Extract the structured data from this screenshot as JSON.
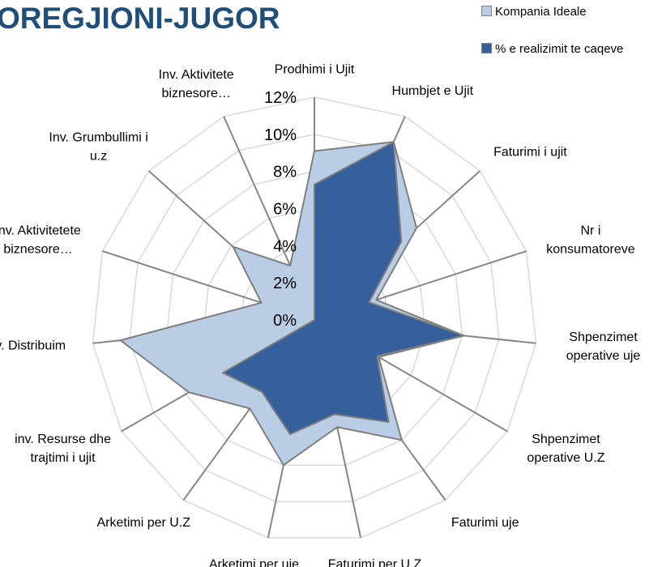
{
  "chart_data": {
    "type": "radar",
    "title": "OREGJIONI-JUGOR",
    "categories": [
      "Prodhimi i Ujit",
      "Humbjet e Ujit",
      "Faturimi i ujit",
      "Nr i konsumatoreve",
      "Shpenzimet operative uje",
      "Shpenzimet operative U.Z",
      "Faturimi uje",
      "Faturimi per U.Z",
      "Arketimi per uje",
      "Arketimi per U.Z",
      "inv. Resurse dhe trajtimi i ujit",
      "inv. Distribuim",
      "inv. Aktivitetete biznesore…",
      "Inv. Grumbullimi i u.z",
      "Inv. Aktivitete biznesore…"
    ],
    "series": [
      {
        "name": "Kompania Ideale",
        "color": "#b9cde5",
        "values": [
          9.1,
          10.5,
          7.4,
          3.5,
          8.1,
          4.0,
          8.0,
          5.9,
          8.0,
          5.9,
          7.8,
          10.5,
          3.0,
          5.9,
          3.2
        ]
      },
      {
        "name": "% e realizimit te caqeve",
        "color": "#35609c",
        "values": [
          7.3,
          10.5,
          6.3,
          3.1,
          8.1,
          3.9,
          6.8,
          5.2,
          6.3,
          4.8,
          5.7,
          0,
          0,
          0,
          0
        ]
      }
    ],
    "ylim": [
      0,
      12
    ],
    "yticks": [
      {
        "value": 0,
        "label": "0%"
      },
      {
        "value": 2,
        "label": "2%"
      },
      {
        "value": 4,
        "label": "4%"
      },
      {
        "value": 6,
        "label": "6%"
      },
      {
        "value": 8,
        "label": "8%"
      },
      {
        "value": 10,
        "label": "10%"
      },
      {
        "value": 12,
        "label": "12%"
      }
    ],
    "grid": true,
    "legend": "top-right"
  }
}
